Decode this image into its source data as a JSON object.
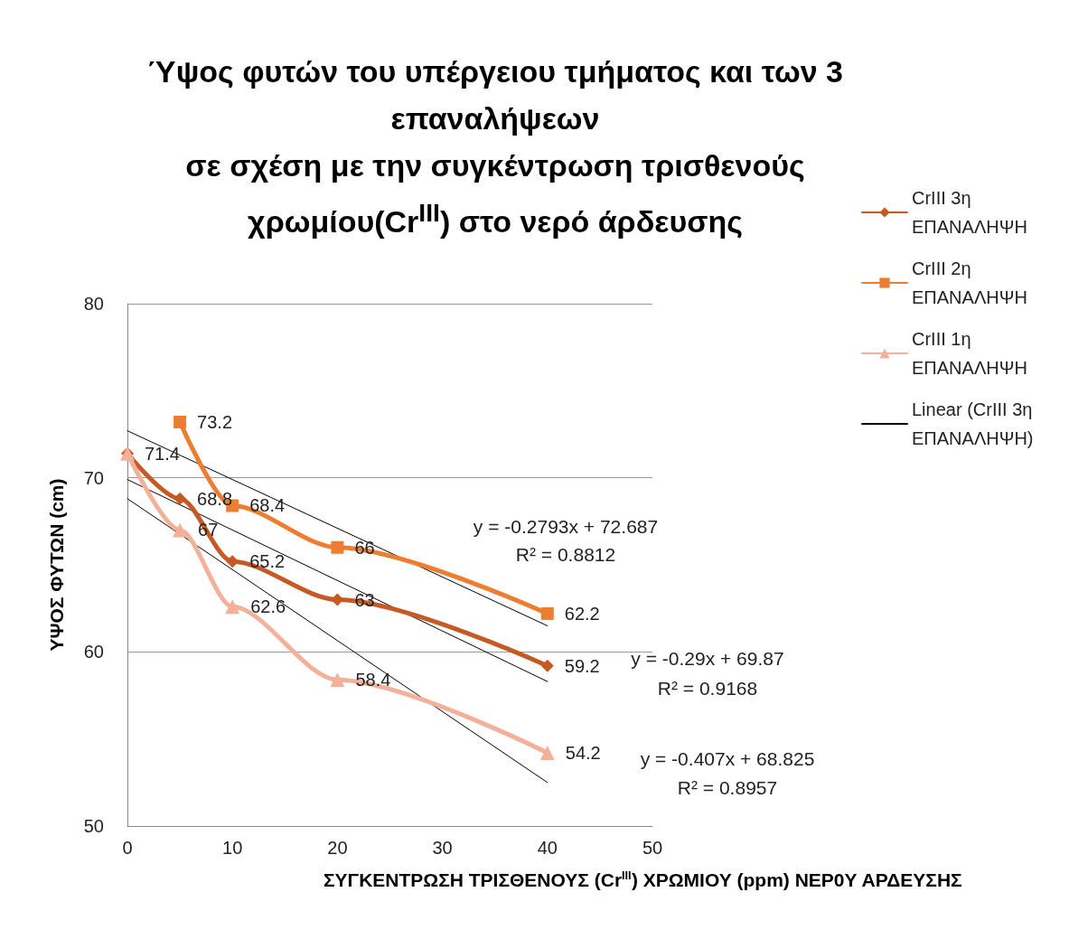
{
  "chart_data": {
    "type": "line",
    "title": "Ύψος φυτών του υπέργειου τμήματος και των 3 επαναλήψεων\nσε σχέση με την συγκέντρωση τρισθενούς χρωμίου(Cr$^{III}$) στο νερό άρδευσης",
    "xlabel": "ΣΥΓΚΕΝΤΡΩΣΗ ΤΡΙΣΘΕΝΟΥΣ (Cr$^{III}$) ΧΡΩΜΙΟΥ (ppm) ΝΕΡ0Υ ΑΡΔΕΥΣΗΣ",
    "ylabel": "ΥΨΟΣ ΦΥΤΩΝ (cm)",
    "xlim": [
      0,
      50
    ],
    "xticks": [
      0,
      10,
      20,
      30,
      40,
      50
    ],
    "ylim": [
      50,
      80
    ],
    "yticks": [
      50,
      60,
      70,
      80
    ],
    "grid": "y",
    "legend": "right",
    "series": [
      {
        "name": "CrIII 3η ΕΠΑΝΑΛΗΨΗ",
        "color": "#c55a24",
        "marker": "diamond",
        "x": [
          0,
          5,
          10,
          20,
          40
        ],
        "values": [
          71.4,
          68.8,
          65.2,
          63,
          59.2
        ],
        "value_labels": [
          "71.4",
          "68.8",
          "65.2",
          "63",
          "59.2"
        ]
      },
      {
        "name": "CrIII 2η ΕΠΑΝΑΛΗΨΗ",
        "color": "#ed7d31",
        "marker": "square",
        "x": [
          5,
          10,
          20,
          40
        ],
        "values": [
          73.2,
          68.4,
          66,
          62.2
        ],
        "value_labels": [
          "73.2",
          "68.4",
          "66",
          "62.2"
        ]
      },
      {
        "name": "CrIII 1η ΕΠΑΝΑΛΗΨΗ",
        "color": "#f4b19a",
        "marker": "triangle",
        "x": [
          0,
          5,
          10,
          20,
          40
        ],
        "values": [
          71.4,
          67,
          62.6,
          58.4,
          54.2
        ],
        "value_labels": [
          null,
          "67",
          "62.6",
          "58.4",
          "54.2"
        ]
      },
      {
        "name": "Linear (CrIII 3η ΕΠΑΝΑΛΗΨΗ)",
        "color": "#000000",
        "marker": "none",
        "x": [
          0,
          40
        ],
        "values": [
          69.9,
          58.3
        ]
      },
      {
        "color": "#000000",
        "marker": "none",
        "x": [
          0,
          40
        ],
        "values": [
          72.7,
          61.5
        ]
      },
      {
        "color": "#000000",
        "marker": "none",
        "x": [
          0,
          40
        ],
        "values": [
          68.8,
          52.5
        ]
      }
    ],
    "annotations": [
      "y = -0.2793x + 72.687",
      "R² = 0.8812",
      "y = -0.29x + 69.87",
      "R² = 0.9168",
      "y = -0.407x + 68.825",
      "R² = 0.8957"
    ]
  }
}
